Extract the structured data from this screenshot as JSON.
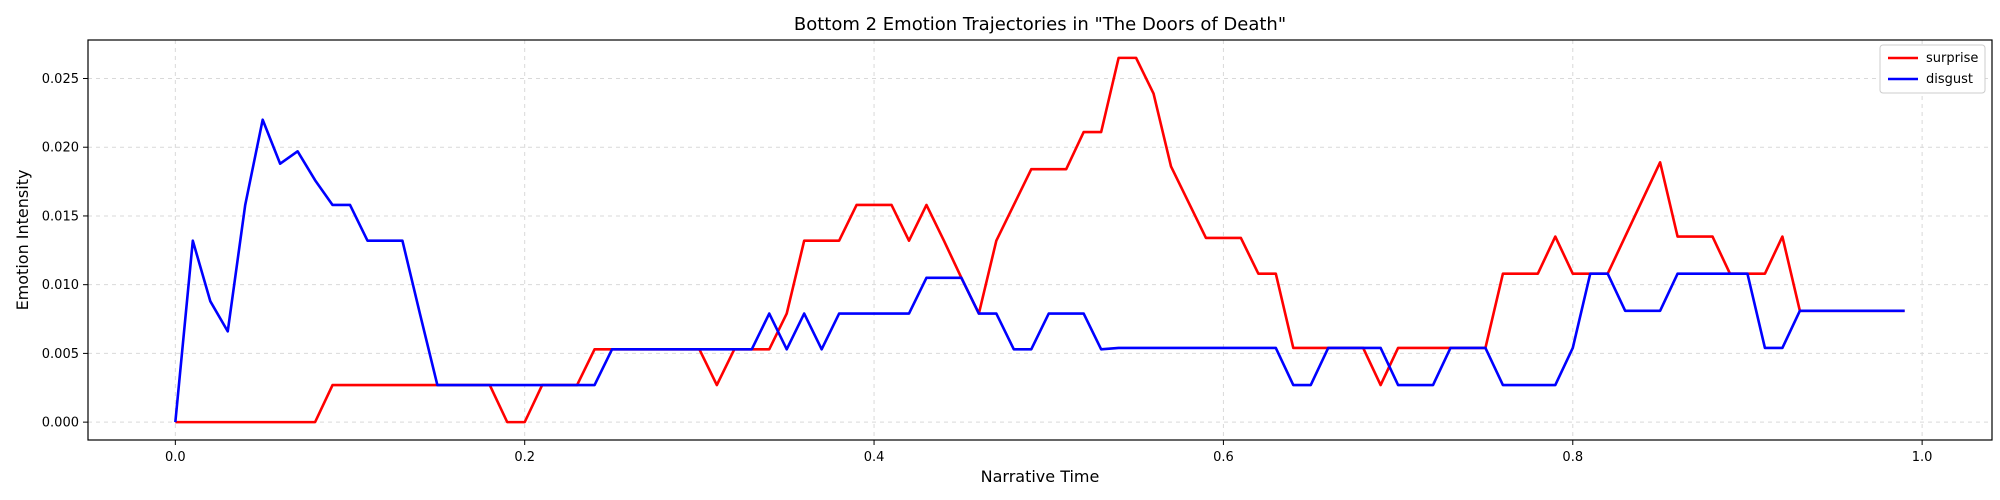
{
  "chart_data": {
    "type": "line",
    "title": "Bottom 2 Emotion Trajectories in \"The Doors of Death\"",
    "xlabel": "Narrative Time",
    "ylabel": "Emotion Intensity",
    "xlim": [
      -0.05,
      1.04
    ],
    "ylim": [
      -0.0013,
      0.0278
    ],
    "xticks": [
      0.0,
      0.2,
      0.4,
      0.6,
      0.8,
      1.0
    ],
    "xtick_labels": [
      "0.0",
      "0.2",
      "0.4",
      "0.6",
      "0.8",
      "1.0"
    ],
    "yticks": [
      0.0,
      0.005,
      0.01,
      0.015,
      0.02,
      0.025
    ],
    "ytick_labels": [
      "0.000",
      "0.005",
      "0.010",
      "0.015",
      "0.020",
      "0.025"
    ],
    "grid": true,
    "legend_position": "top-right",
    "x": [
      0.0,
      0.01,
      0.02,
      0.03,
      0.04,
      0.05,
      0.06,
      0.07,
      0.08,
      0.09,
      0.1,
      0.11,
      0.12,
      0.13,
      0.14,
      0.15,
      0.16,
      0.17,
      0.18,
      0.19,
      0.2,
      0.21,
      0.22,
      0.23,
      0.24,
      0.25,
      0.26,
      0.27,
      0.28,
      0.29,
      0.3,
      0.31,
      0.32,
      0.33,
      0.34,
      0.35,
      0.36,
      0.37,
      0.38,
      0.39,
      0.4,
      0.41,
      0.42,
      0.43,
      0.44,
      0.45,
      0.46,
      0.47,
      0.48,
      0.49,
      0.5,
      0.51,
      0.52,
      0.53,
      0.54,
      0.55,
      0.56,
      0.57,
      0.58,
      0.59,
      0.6,
      0.61,
      0.62,
      0.63,
      0.64,
      0.65,
      0.66,
      0.67,
      0.68,
      0.69,
      0.7,
      0.71,
      0.72,
      0.73,
      0.74,
      0.75,
      0.76,
      0.77,
      0.78,
      0.79,
      0.8,
      0.81,
      0.82,
      0.83,
      0.84,
      0.85,
      0.86,
      0.87,
      0.88,
      0.89,
      0.9,
      0.91,
      0.92,
      0.93,
      0.94,
      0.95,
      0.96,
      0.97,
      0.98,
      0.99
    ],
    "series": [
      {
        "name": "surprise",
        "color": "#ff0000",
        "values": [
          0.0,
          0.0,
          0.0,
          0.0,
          0.0,
          0.0,
          0.0,
          0.0,
          0.0,
          0.0027,
          0.0027,
          0.0027,
          0.0027,
          0.0027,
          0.0027,
          0.0027,
          0.0027,
          0.0027,
          0.0027,
          0.0,
          0.0,
          0.0027,
          0.0027,
          0.0027,
          0.0053,
          0.0053,
          0.0053,
          0.0053,
          0.0053,
          0.0053,
          0.0053,
          0.0027,
          0.0053,
          0.0053,
          0.0053,
          0.0079,
          0.0132,
          0.0132,
          0.0132,
          0.0158,
          0.0158,
          0.0158,
          0.0132,
          0.0158,
          0.0132,
          0.0105,
          0.0079,
          0.0132,
          0.0158,
          0.0184,
          0.0184,
          0.0184,
          0.0211,
          0.0211,
          0.0265,
          0.0265,
          0.0239,
          0.0186,
          0.016,
          0.0134,
          0.0134,
          0.0134,
          0.0108,
          0.0108,
          0.0054,
          0.0054,
          0.0054,
          0.0054,
          0.0054,
          0.0027,
          0.0054,
          0.0054,
          0.0054,
          0.0054,
          0.0054,
          0.0054,
          0.0108,
          0.0108,
          0.0108,
          0.0135,
          0.0108,
          0.0108,
          0.0108,
          0.0135,
          0.0162,
          0.0189,
          0.0135,
          0.0135,
          0.0135,
          0.0108,
          0.0108,
          0.0108,
          0.0135,
          0.0081,
          0.0081,
          0.0081,
          0.0081,
          0.0081,
          0.0081,
          0.0081
        ]
      },
      {
        "name": "disgust",
        "color": "#0000ff",
        "values": [
          0.0,
          0.0132,
          0.0088,
          0.0066,
          0.0158,
          0.022,
          0.0188,
          0.0197,
          0.0176,
          0.0158,
          0.0158,
          0.0132,
          0.0132,
          0.0132,
          0.0079,
          0.0027,
          0.0027,
          0.0027,
          0.0027,
          0.0027,
          0.0027,
          0.0027,
          0.0027,
          0.0027,
          0.0027,
          0.0053,
          0.0053,
          0.0053,
          0.0053,
          0.0053,
          0.0053,
          0.0053,
          0.0053,
          0.0053,
          0.0079,
          0.0053,
          0.0079,
          0.0053,
          0.0079,
          0.0079,
          0.0079,
          0.0079,
          0.0079,
          0.0105,
          0.0105,
          0.0105,
          0.0079,
          0.0079,
          0.0053,
          0.0053,
          0.0079,
          0.0079,
          0.0079,
          0.0053,
          0.0054,
          0.0054,
          0.0054,
          0.0054,
          0.0054,
          0.0054,
          0.0054,
          0.0054,
          0.0054,
          0.0054,
          0.0027,
          0.0027,
          0.0054,
          0.0054,
          0.0054,
          0.0054,
          0.0027,
          0.0027,
          0.0027,
          0.0054,
          0.0054,
          0.0054,
          0.0027,
          0.0027,
          0.0027,
          0.0027,
          0.0054,
          0.0108,
          0.0108,
          0.0081,
          0.0081,
          0.0081,
          0.0108,
          0.0108,
          0.0108,
          0.0108,
          0.0108,
          0.0054,
          0.0054,
          0.0081,
          0.0081,
          0.0081,
          0.0081,
          0.0081,
          0.0081,
          0.0081
        ]
      }
    ]
  }
}
